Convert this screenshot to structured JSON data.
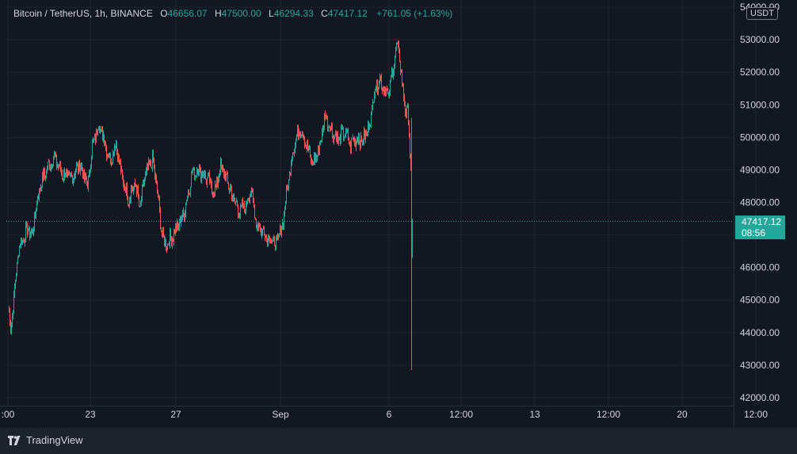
{
  "legend": {
    "symbol": "Bitcoin / TetherUS, 1h, BINANCE",
    "o_label": "O",
    "o_value": "46656.07",
    "h_label": "H",
    "h_value": "47500.00",
    "l_label": "L",
    "l_value": "46294.33",
    "c_label": "C",
    "c_value": "47417.12",
    "change": "+761.05 (+1.63%)"
  },
  "currency_badge": "USDT",
  "last_price": {
    "value": "47417.12",
    "countdown": "08:56"
  },
  "footer": {
    "brand": "TradingView"
  },
  "colors": {
    "background": "#131722",
    "up": "#26a69a",
    "down": "#ef5350",
    "grid": "#1f2430",
    "text": "#d1d4dc"
  },
  "chart_data": {
    "type": "candlestick",
    "y_ticks": [
      "42000.00",
      "43000.00",
      "44000.00",
      "45000.00",
      "46000.00",
      "47000.00",
      "48000.00",
      "49000.00",
      "50000.00",
      "51000.00",
      "52000.00",
      "53000.00",
      "54000.00"
    ],
    "ylim": [
      41900,
      54100
    ],
    "x_ticks": [
      ":00",
      "23",
      "27",
      "Sep",
      "6",
      "12:00",
      "13",
      "12:00",
      "20",
      "12:00"
    ],
    "x_tick_index": [
      0,
      104,
      212,
      344,
      481,
      572,
      665,
      758,
      851,
      944
    ],
    "grid": true,
    "last_value": 47417.12,
    "path": [
      [
        0,
        44800
      ],
      [
        3,
        44100
      ],
      [
        8,
        45300
      ],
      [
        13,
        46600
      ],
      [
        18,
        46850
      ],
      [
        25,
        47200
      ],
      [
        30,
        46950
      ],
      [
        34,
        47700
      ],
      [
        40,
        48500
      ],
      [
        48,
        49000
      ],
      [
        58,
        49400
      ],
      [
        68,
        48900
      ],
      [
        78,
        48700
      ],
      [
        90,
        49200
      ],
      [
        100,
        48500
      ],
      [
        106,
        49700
      ],
      [
        114,
        50400
      ],
      [
        120,
        50000
      ],
      [
        128,
        49300
      ],
      [
        136,
        49800
      ],
      [
        144,
        48700
      ],
      [
        152,
        48100
      ],
      [
        160,
        48600
      ],
      [
        166,
        47800
      ],
      [
        172,
        48800
      ],
      [
        182,
        49300
      ],
      [
        188,
        48400
      ],
      [
        192,
        47400
      ],
      [
        197,
        46700
      ],
      [
        206,
        46900
      ],
      [
        214,
        47300
      ],
      [
        222,
        47700
      ],
      [
        232,
        48900
      ],
      [
        242,
        49000
      ],
      [
        252,
        48700
      ],
      [
        260,
        48300
      ],
      [
        268,
        49100
      ],
      [
        276,
        48700
      ],
      [
        284,
        48100
      ],
      [
        292,
        47700
      ],
      [
        300,
        47900
      ],
      [
        306,
        48400
      ],
      [
        314,
        47300
      ],
      [
        322,
        47100
      ],
      [
        330,
        46900
      ],
      [
        338,
        46700
      ],
      [
        345,
        47200
      ],
      [
        352,
        48400
      ],
      [
        360,
        49700
      ],
      [
        368,
        50300
      ],
      [
        376,
        49800
      ],
      [
        384,
        49200
      ],
      [
        392,
        49600
      ],
      [
        400,
        50700
      ],
      [
        408,
        50200
      ],
      [
        416,
        49900
      ],
      [
        424,
        50200
      ],
      [
        432,
        49800
      ],
      [
        440,
        50000
      ],
      [
        448,
        49900
      ],
      [
        456,
        50400
      ],
      [
        462,
        51400
      ],
      [
        468,
        51800
      ],
      [
        474,
        51500
      ],
      [
        480,
        51300
      ],
      [
        486,
        52200
      ],
      [
        490,
        52800
      ],
      [
        494,
        52500
      ],
      [
        498,
        51400
      ],
      [
        502,
        50800
      ],
      [
        505,
        50600
      ],
      [
        508,
        49000
      ],
      [
        510,
        47400
      ]
    ],
    "spike": {
      "index": 509,
      "low": 42850,
      "high": 50600
    }
  }
}
